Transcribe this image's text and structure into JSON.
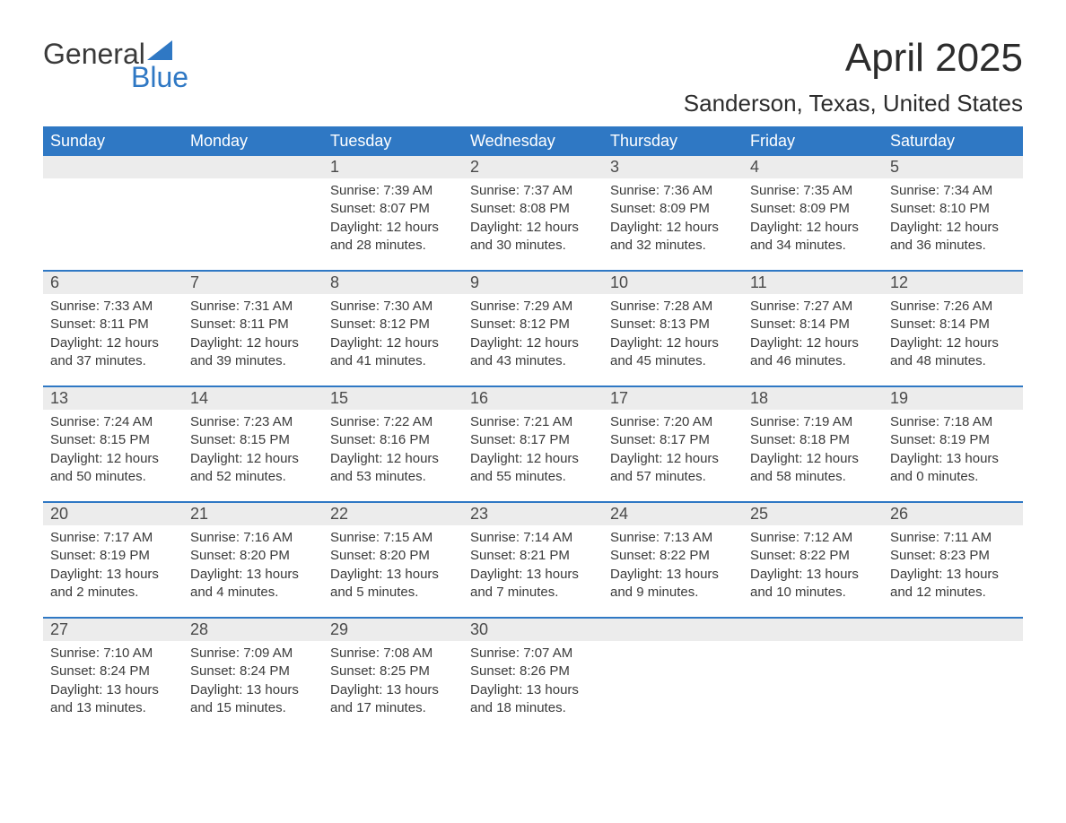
{
  "logo": {
    "word1": "General",
    "word2": "Blue"
  },
  "title": "April 2025",
  "location": "Sanderson, Texas, United States",
  "colors": {
    "header_bg": "#2f78c4",
    "header_text": "#ffffff",
    "daynum_bg": "#ececec",
    "text": "#3a3a3a",
    "logo_blue": "#2f78c4"
  },
  "columns": [
    "Sunday",
    "Monday",
    "Tuesday",
    "Wednesday",
    "Thursday",
    "Friday",
    "Saturday"
  ],
  "weeks": [
    [
      null,
      null,
      {
        "n": "1",
        "sunrise": "7:39 AM",
        "sunset": "8:07 PM",
        "dl1": "Daylight: 12 hours",
        "dl2": "and 28 minutes."
      },
      {
        "n": "2",
        "sunrise": "7:37 AM",
        "sunset": "8:08 PM",
        "dl1": "Daylight: 12 hours",
        "dl2": "and 30 minutes."
      },
      {
        "n": "3",
        "sunrise": "7:36 AM",
        "sunset": "8:09 PM",
        "dl1": "Daylight: 12 hours",
        "dl2": "and 32 minutes."
      },
      {
        "n": "4",
        "sunrise": "7:35 AM",
        "sunset": "8:09 PM",
        "dl1": "Daylight: 12 hours",
        "dl2": "and 34 minutes."
      },
      {
        "n": "5",
        "sunrise": "7:34 AM",
        "sunset": "8:10 PM",
        "dl1": "Daylight: 12 hours",
        "dl2": "and 36 minutes."
      }
    ],
    [
      {
        "n": "6",
        "sunrise": "7:33 AM",
        "sunset": "8:11 PM",
        "dl1": "Daylight: 12 hours",
        "dl2": "and 37 minutes."
      },
      {
        "n": "7",
        "sunrise": "7:31 AM",
        "sunset": "8:11 PM",
        "dl1": "Daylight: 12 hours",
        "dl2": "and 39 minutes."
      },
      {
        "n": "8",
        "sunrise": "7:30 AM",
        "sunset": "8:12 PM",
        "dl1": "Daylight: 12 hours",
        "dl2": "and 41 minutes."
      },
      {
        "n": "9",
        "sunrise": "7:29 AM",
        "sunset": "8:12 PM",
        "dl1": "Daylight: 12 hours",
        "dl2": "and 43 minutes."
      },
      {
        "n": "10",
        "sunrise": "7:28 AM",
        "sunset": "8:13 PM",
        "dl1": "Daylight: 12 hours",
        "dl2": "and 45 minutes."
      },
      {
        "n": "11",
        "sunrise": "7:27 AM",
        "sunset": "8:14 PM",
        "dl1": "Daylight: 12 hours",
        "dl2": "and 46 minutes."
      },
      {
        "n": "12",
        "sunrise": "7:26 AM",
        "sunset": "8:14 PM",
        "dl1": "Daylight: 12 hours",
        "dl2": "and 48 minutes."
      }
    ],
    [
      {
        "n": "13",
        "sunrise": "7:24 AM",
        "sunset": "8:15 PM",
        "dl1": "Daylight: 12 hours",
        "dl2": "and 50 minutes."
      },
      {
        "n": "14",
        "sunrise": "7:23 AM",
        "sunset": "8:15 PM",
        "dl1": "Daylight: 12 hours",
        "dl2": "and 52 minutes."
      },
      {
        "n": "15",
        "sunrise": "7:22 AM",
        "sunset": "8:16 PM",
        "dl1": "Daylight: 12 hours",
        "dl2": "and 53 minutes."
      },
      {
        "n": "16",
        "sunrise": "7:21 AM",
        "sunset": "8:17 PM",
        "dl1": "Daylight: 12 hours",
        "dl2": "and 55 minutes."
      },
      {
        "n": "17",
        "sunrise": "7:20 AM",
        "sunset": "8:17 PM",
        "dl1": "Daylight: 12 hours",
        "dl2": "and 57 minutes."
      },
      {
        "n": "18",
        "sunrise": "7:19 AM",
        "sunset": "8:18 PM",
        "dl1": "Daylight: 12 hours",
        "dl2": "and 58 minutes."
      },
      {
        "n": "19",
        "sunrise": "7:18 AM",
        "sunset": "8:19 PM",
        "dl1": "Daylight: 13 hours",
        "dl2": "and 0 minutes."
      }
    ],
    [
      {
        "n": "20",
        "sunrise": "7:17 AM",
        "sunset": "8:19 PM",
        "dl1": "Daylight: 13 hours",
        "dl2": "and 2 minutes."
      },
      {
        "n": "21",
        "sunrise": "7:16 AM",
        "sunset": "8:20 PM",
        "dl1": "Daylight: 13 hours",
        "dl2": "and 4 minutes."
      },
      {
        "n": "22",
        "sunrise": "7:15 AM",
        "sunset": "8:20 PM",
        "dl1": "Daylight: 13 hours",
        "dl2": "and 5 minutes."
      },
      {
        "n": "23",
        "sunrise": "7:14 AM",
        "sunset": "8:21 PM",
        "dl1": "Daylight: 13 hours",
        "dl2": "and 7 minutes."
      },
      {
        "n": "24",
        "sunrise": "7:13 AM",
        "sunset": "8:22 PM",
        "dl1": "Daylight: 13 hours",
        "dl2": "and 9 minutes."
      },
      {
        "n": "25",
        "sunrise": "7:12 AM",
        "sunset": "8:22 PM",
        "dl1": "Daylight: 13 hours",
        "dl2": "and 10 minutes."
      },
      {
        "n": "26",
        "sunrise": "7:11 AM",
        "sunset": "8:23 PM",
        "dl1": "Daylight: 13 hours",
        "dl2": "and 12 minutes."
      }
    ],
    [
      {
        "n": "27",
        "sunrise": "7:10 AM",
        "sunset": "8:24 PM",
        "dl1": "Daylight: 13 hours",
        "dl2": "and 13 minutes."
      },
      {
        "n": "28",
        "sunrise": "7:09 AM",
        "sunset": "8:24 PM",
        "dl1": "Daylight: 13 hours",
        "dl2": "and 15 minutes."
      },
      {
        "n": "29",
        "sunrise": "7:08 AM",
        "sunset": "8:25 PM",
        "dl1": "Daylight: 13 hours",
        "dl2": "and 17 minutes."
      },
      {
        "n": "30",
        "sunrise": "7:07 AM",
        "sunset": "8:26 PM",
        "dl1": "Daylight: 13 hours",
        "dl2": "and 18 minutes."
      },
      null,
      null,
      null
    ]
  ],
  "labels": {
    "sunrise": "Sunrise: ",
    "sunset": "Sunset: "
  }
}
